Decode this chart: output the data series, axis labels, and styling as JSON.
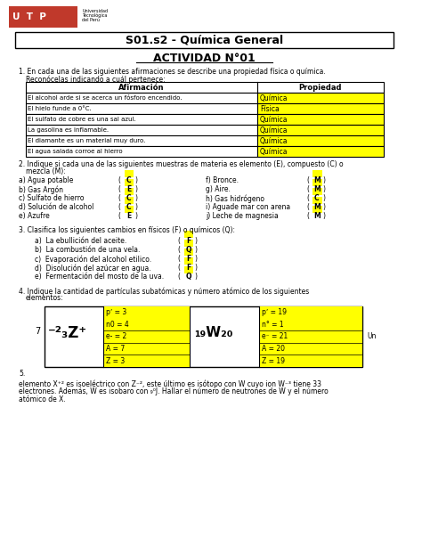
{
  "title_course": "S01.s2 - Química General",
  "title_activity": "ACTIVIDAD N°01",
  "bg_color": "#ffffff",
  "yellow": "#ffff00",
  "table1_headers": [
    "Afirmación",
    "Propiedad"
  ],
  "table1_rows": [
    [
      "El alcohol arde si se acerca un fósforo encendido.",
      "Química"
    ],
    [
      "El hielo funde a 0°C.",
      "Física"
    ],
    [
      "El sulfato de cobre es una sal azul.",
      "Química"
    ],
    [
      "La gasolina es inflamable.",
      "Química"
    ],
    [
      "El diamante es un material muy duro.",
      "Química"
    ],
    [
      "El agua salada corroe al hierro",
      "Química"
    ]
  ],
  "q2_items_left": [
    [
      "a) Agua potable",
      "C"
    ],
    [
      "b) Gas Argón",
      "E"
    ],
    [
      "c) Sulfato de hierro",
      "C"
    ],
    [
      "d) Solución de alcohol",
      "C"
    ],
    [
      "e) Azufre",
      "E"
    ]
  ],
  "q2_items_right": [
    [
      "f) Bronce.",
      "M"
    ],
    [
      "g) Aire.",
      "M"
    ],
    [
      "h) Gas hidrógeno",
      "C"
    ],
    [
      "i) Aguade mar con arena",
      "M"
    ],
    [
      "j) Leche de magnesia",
      "M"
    ]
  ],
  "q3_items": [
    [
      "a)  La ebullición del aceite.",
      "F"
    ],
    [
      "b)  La combustión de una vela.",
      "Q"
    ],
    [
      "c)  Evaporación del alcohol etilico.",
      "F"
    ],
    [
      "d)  Disolución del azúcar en agua.",
      "F"
    ],
    [
      "e)  Fermentación del mosto de la uva.",
      "Q"
    ]
  ],
  "atom1_data": [
    "pʼ = 3",
    "n0 = 4",
    "e- = 2",
    "A = 7",
    "Z = 3"
  ],
  "atom2_data": [
    "pʼ = 19",
    "n° = 1",
    "e⁻ = 21",
    "A = 20",
    "Z = 19"
  ],
  "footer": "elemento X⁺² es isoeléctrico con Z⁻², este último es isótopo con W cuyo ion W⁻³ tiene 33\nelectrones. Además, W es isobaro con ₉⁰J. Hallar el número de neutrones de W y el número\natómico de X."
}
